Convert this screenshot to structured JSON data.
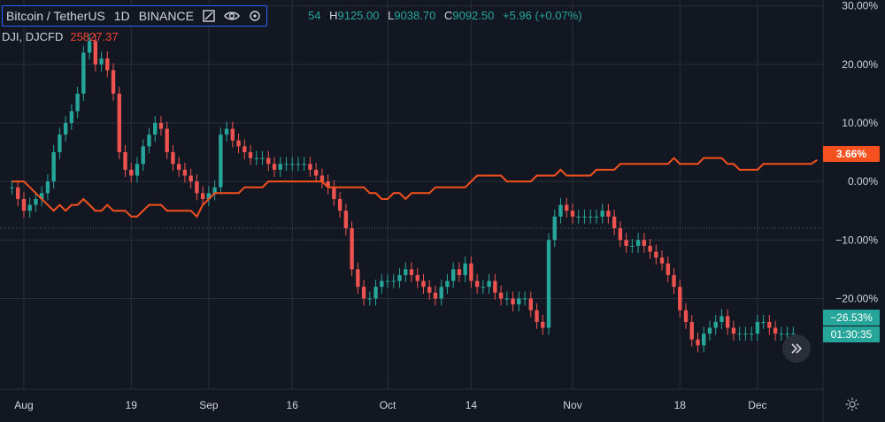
{
  "header": {
    "symbol_title": "Bitcoin / TetherUS",
    "interval": "1D",
    "exchange": "BINANCE",
    "open_fragment": "54",
    "high_label": "H",
    "high_value": "9125.00",
    "low_label": "L",
    "low_value": "9038.70",
    "close_label": "C",
    "close_value": "9092.50",
    "change": "+5.96 (+0.07%)",
    "icons": [
      "square-icon",
      "eye-icon",
      "settings-icon"
    ]
  },
  "overlay": {
    "symbol": "DJI, DJCFD",
    "value": "25827.37"
  },
  "badges": {
    "dji_percent": "3.66%",
    "btc_percent": "−26.53%",
    "countdown": "01:30:35"
  },
  "colors": {
    "background": "#131722",
    "up": "#26a69a",
    "down": "#ef5350",
    "dji_line": "#f4511e",
    "grid": "#2a2e39",
    "text": "#d1d4dc",
    "focus_border": "#2962ff"
  },
  "chart_data": {
    "type": "line",
    "title": "Bitcoin / TetherUS · 1D · BINANCE",
    "y_axis_format": "percent",
    "y_ticks": [
      "30.00%",
      "20.00%",
      "10.00%",
      "0.00%",
      "−10.00%",
      "−20.00%"
    ],
    "y_tick_values": [
      30,
      20,
      10,
      0,
      -10,
      -20
    ],
    "ylim": [
      -35.5,
      31
    ],
    "x_tick_labels": [
      "Aug",
      "19",
      "Sep",
      "16",
      "Oct",
      "14",
      "Nov",
      "18",
      "Dec"
    ],
    "x_tick_day_index": [
      2,
      20,
      33,
      47,
      63,
      77,
      94,
      112,
      125
    ],
    "xlim": [
      -2,
      136
    ],
    "grid": true,
    "reference_line": -8,
    "series": [
      {
        "name": "Bitcoin / TetherUS",
        "kind": "candlestick",
        "values_percent": [
          -1,
          -3,
          -5,
          -4,
          -3,
          -2,
          0,
          5,
          8,
          10,
          12,
          15,
          22,
          24,
          20,
          21,
          19,
          15,
          5,
          2,
          1,
          3,
          6,
          8,
          10,
          9,
          5,
          3,
          2,
          1,
          0,
          -2,
          -3,
          -2,
          -1,
          8,
          9,
          7,
          6,
          5,
          4,
          4,
          4,
          3,
          2,
          3,
          3,
          3,
          3,
          3,
          2,
          1,
          0,
          -1,
          -3,
          -5,
          -8,
          -15,
          -18,
          -20,
          -20,
          -18,
          -17,
          -17,
          -17,
          -16,
          -15,
          -16,
          -17,
          -18,
          -19,
          -20,
          -18,
          -17,
          -15,
          -16,
          -14,
          -17,
          -18,
          -18,
          -17,
          -19,
          -20,
          -20,
          -21,
          -20,
          -20,
          -22,
          -24,
          -25,
          -10,
          -6,
          -4,
          -5,
          -6,
          -6,
          -6,
          -6,
          -6,
          -5,
          -6,
          -8,
          -10,
          -11,
          -11,
          -10,
          -11,
          -12,
          -13,
          -14,
          -16,
          -18,
          -22,
          -24,
          -27,
          -28,
          -26,
          -25,
          -24,
          -23,
          -25,
          -26,
          -26,
          -26,
          -26,
          -24,
          -24,
          -25,
          -26,
          -26,
          -26,
          -26
        ]
      },
      {
        "name": "DJI, DJCFD",
        "kind": "line",
        "values_percent": [
          0,
          0,
          0,
          -1,
          -2,
          -3,
          -4,
          -5,
          -4,
          -5,
          -4,
          -4,
          -3,
          -4,
          -5,
          -5,
          -4,
          -5,
          -5,
          -5,
          -6,
          -6,
          -5,
          -4,
          -4,
          -4,
          -5,
          -5,
          -5,
          -5,
          -5,
          -6,
          -4,
          -3,
          -2,
          -2,
          -2,
          -2,
          -2,
          -1,
          -1,
          -1,
          -1,
          0,
          0,
          0,
          0,
          0,
          0,
          0,
          0,
          0,
          0,
          -1,
          -1,
          -1,
          -1,
          -1,
          -1,
          -1,
          -2,
          -2,
          -3,
          -3,
          -2,
          -2,
          -3,
          -2,
          -2,
          -2,
          -2,
          -1,
          -1,
          -1,
          -1,
          -1,
          -1,
          0,
          1,
          1,
          1,
          1,
          1,
          0,
          0,
          0,
          0,
          0,
          1,
          1,
          1,
          1,
          2,
          1,
          1,
          1,
          1,
          1,
          2,
          2,
          2,
          2,
          3,
          3,
          3,
          3,
          3,
          3,
          3,
          3,
          3,
          4,
          3,
          3,
          3,
          3,
          4,
          4,
          4,
          4,
          3,
          3,
          2,
          2,
          2,
          2,
          3,
          3,
          3,
          3,
          3,
          3,
          3,
          3,
          3,
          3.66
        ]
      }
    ]
  }
}
